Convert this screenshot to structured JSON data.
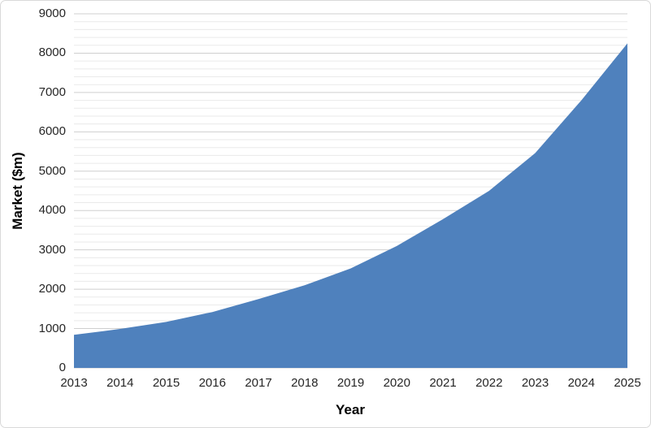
{
  "chart_data": {
    "type": "area",
    "title": "",
    "xlabel": "Year",
    "ylabel": "Market ($m)",
    "categories": [
      "2013",
      "2014",
      "2015",
      "2016",
      "2017",
      "2018",
      "2019",
      "2020",
      "2021",
      "2022",
      "2023",
      "2024",
      "2025"
    ],
    "series": [
      {
        "name": "Market ($m)",
        "values": [
          840,
          990,
          1170,
          1420,
          1750,
          2100,
          2530,
          3100,
          3780,
          4500,
          5460,
          6800,
          8250
        ]
      }
    ],
    "ylim": [
      0,
      9000
    ],
    "y_major_step": 1000,
    "y_minor_step": 200,
    "y_tick_labels": [
      "0",
      "1000",
      "2000",
      "3000",
      "4000",
      "5000",
      "6000",
      "7000",
      "8000",
      "9000"
    ],
    "grid": "horizontal major and minor, no vertical",
    "legend_position": "none"
  },
  "colors": {
    "area_fill": "#4f81bd",
    "major_gridline": "#cfcfcf",
    "minor_gridline": "#eaeaea",
    "tick_text": "#262626",
    "axis_title_text": "#000000",
    "chart_border": "#d9d9d9",
    "background": "#ffffff"
  }
}
